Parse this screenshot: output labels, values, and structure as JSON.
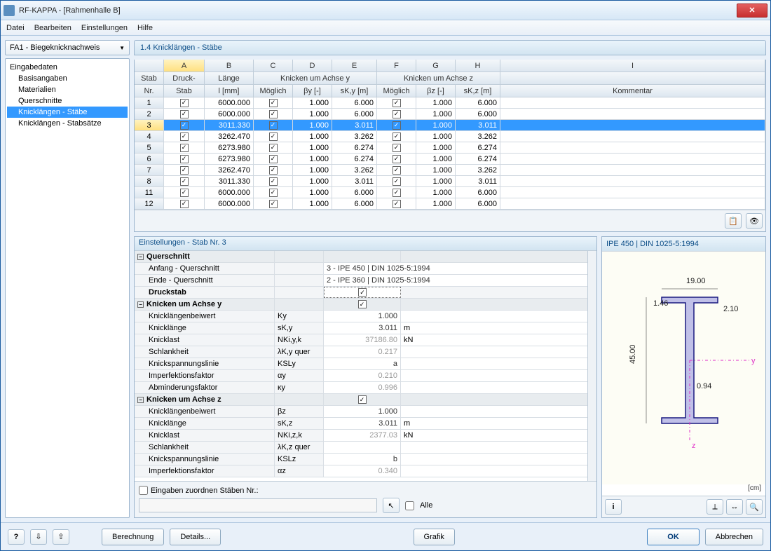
{
  "window": {
    "title": "RF-KAPPA - [Rahmenhalle B]"
  },
  "menu": {
    "items": [
      "Datei",
      "Bearbeiten",
      "Einstellungen",
      "Hilfe"
    ]
  },
  "left": {
    "dropdown": "FA1 - Biegeknicknachweis",
    "tree_root": "Eingabedaten",
    "tree_items": [
      "Basisangaben",
      "Materialien",
      "Querschnitte",
      "Knicklängen - Stäbe",
      "Knicklängen - Stabsätze"
    ],
    "tree_selected": 3
  },
  "panel_title": "1.4 Knicklängen - Stäbe",
  "grid": {
    "col_letters": [
      "A",
      "B",
      "C",
      "D",
      "E",
      "F",
      "G",
      "H",
      "I"
    ],
    "spanhead": {
      "stab": "Stab",
      "druck": "Druck-",
      "lange": "Länge",
      "y": "Knicken um Achse y",
      "z": "Knicken um Achse z",
      "stabnr": "Nr.",
      "stab2": "Stab",
      "lmm": "l [mm]",
      "mog": "Möglich",
      "by": "βy [-]",
      "sky": "sK,y [m]",
      "bz": "βz [-]",
      "skz": "sK,z [m]",
      "kom": "Kommentar"
    },
    "rows": [
      {
        "n": "1",
        "l": "6000.000",
        "by": "1.000",
        "sky": "6.000",
        "bz": "1.000",
        "skz": "6.000"
      },
      {
        "n": "2",
        "l": "6000.000",
        "by": "1.000",
        "sky": "6.000",
        "bz": "1.000",
        "skz": "6.000"
      },
      {
        "n": "3",
        "l": "3011.330",
        "by": "1.000",
        "sky": "3.011",
        "bz": "1.000",
        "skz": "3.011",
        "sel": true
      },
      {
        "n": "4",
        "l": "3262.470",
        "by": "1.000",
        "sky": "3.262",
        "bz": "1.000",
        "skz": "3.262"
      },
      {
        "n": "5",
        "l": "6273.980",
        "by": "1.000",
        "sky": "6.274",
        "bz": "1.000",
        "skz": "6.274"
      },
      {
        "n": "6",
        "l": "6273.980",
        "by": "1.000",
        "sky": "6.274",
        "bz": "1.000",
        "skz": "6.274"
      },
      {
        "n": "7",
        "l": "3262.470",
        "by": "1.000",
        "sky": "3.262",
        "bz": "1.000",
        "skz": "3.262"
      },
      {
        "n": "8",
        "l": "3011.330",
        "by": "1.000",
        "sky": "3.011",
        "bz": "1.000",
        "skz": "3.011"
      },
      {
        "n": "11",
        "l": "6000.000",
        "by": "1.000",
        "sky": "6.000",
        "bz": "1.000",
        "skz": "6.000"
      },
      {
        "n": "12",
        "l": "6000.000",
        "by": "1.000",
        "sky": "6.000",
        "bz": "1.000",
        "skz": "6.000"
      }
    ]
  },
  "settings": {
    "title": "Einstellungen  -  Stab Nr.  3",
    "groups": [
      {
        "label": "Querschnitt",
        "rows": [
          {
            "lbl": "Anfang - Querschnitt",
            "sym": "",
            "val": "3 - IPE 450 | DIN 1025-5:1994",
            "span": true
          },
          {
            "lbl": "Ende - Querschnitt",
            "sym": "",
            "val": "2 - IPE 360 | DIN 1025-5:1994",
            "span": true
          },
          {
            "lbl": "Druckstab",
            "sym": "",
            "check": true,
            "bold": true
          }
        ]
      },
      {
        "label": "Knicken um Achse y",
        "check": true,
        "rows": [
          {
            "lbl": "Knicklängenbeiwert",
            "sym": "Ky",
            "val": "1.000"
          },
          {
            "lbl": "Knicklänge",
            "sym": "sK,y",
            "val": "3.011",
            "unit": "m"
          },
          {
            "lbl": "Knicklast",
            "sym": "NKi,y,k",
            "val": "37186.80",
            "unit": "kN",
            "gray": true
          },
          {
            "lbl": "Schlankheit",
            "sym": "λK,y quer",
            "val": "0.217",
            "gray": true
          },
          {
            "lbl": "Knickspannungslinie",
            "sym": "KSLy",
            "val": "a"
          },
          {
            "lbl": "Imperfektionsfaktor",
            "sym": "αy",
            "val": "0.210",
            "gray": true
          },
          {
            "lbl": "Abminderungsfaktor",
            "sym": "κy",
            "val": "0.996",
            "gray": true
          }
        ]
      },
      {
        "label": "Knicken um Achse z",
        "check": true,
        "rows": [
          {
            "lbl": "Knicklängenbeiwert",
            "sym": "βz",
            "val": "1.000"
          },
          {
            "lbl": "Knicklänge",
            "sym": "sK,z",
            "val": "3.011",
            "unit": "m"
          },
          {
            "lbl": "Knicklast",
            "sym": "NKi,z,k",
            "val": "2377.03",
            "unit": "kN",
            "gray": true
          },
          {
            "lbl": "Schlankheit",
            "sym": "λK,z quer",
            "val": "",
            "gray": true
          },
          {
            "lbl": "Knickspannungslinie",
            "sym": "KSLz",
            "val": "b"
          },
          {
            "lbl": "Imperfektionsfaktor",
            "sym": "αz",
            "val": "0.340",
            "gray": true
          }
        ]
      }
    ],
    "assign_label": "Eingaben zuordnen Stäben Nr.:",
    "alle": "Alle"
  },
  "preview": {
    "title": "IPE 450 | DIN 1025-5:1994",
    "unit": "[cm]",
    "dims": {
      "width": "19.00",
      "height": "45.00",
      "tf": "1.46",
      "tw": "2.10",
      "r": "0.94"
    },
    "colors": {
      "profile_stroke": "#1a1a80",
      "profile_fill": "#c0c0e8",
      "dim": "#222",
      "y_axis": "#e030c8",
      "z_axis": "#e030c8"
    }
  },
  "buttons": {
    "berechnung": "Berechnung",
    "details": "Details...",
    "grafik": "Grafik",
    "ok": "OK",
    "abbrechen": "Abbrechen"
  }
}
